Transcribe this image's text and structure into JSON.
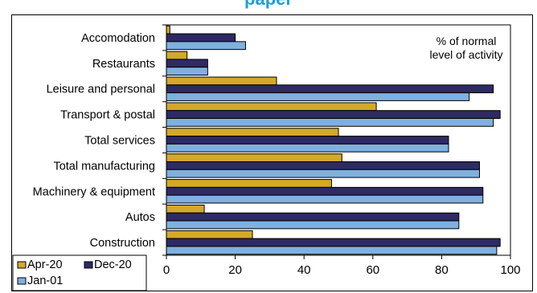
{
  "title_partial": "paper",
  "chart_data": {
    "type": "bar",
    "orientation": "horizontal",
    "categories": [
      "Accomodation",
      "Restaurants",
      "Leisure and personal",
      "Transport & postal",
      "Total services",
      "Total manufacturing",
      "Machinery & equipment",
      "Autos",
      "Construction"
    ],
    "series": [
      {
        "name": "Apr-20",
        "color": "#d4a82a",
        "values": [
          1,
          6,
          32,
          61,
          50,
          51,
          48,
          11,
          25
        ]
      },
      {
        "name": "Dec-20",
        "color": "#2e2a63",
        "values": [
          20,
          12,
          95,
          97,
          82,
          91,
          92,
          85,
          97
        ]
      },
      {
        "name": "Jan-01",
        "color": "#7fb0e0",
        "values": [
          23,
          12,
          88,
          95,
          82,
          91,
          92,
          85,
          96
        ]
      }
    ],
    "xlim": [
      0,
      100
    ],
    "xticks": [
      "0",
      "20",
      "40",
      "60",
      "80",
      "100"
    ],
    "annotation": [
      "% of normal",
      "level of activity"
    ],
    "legend": {
      "placement": "bottom-left",
      "entries": [
        "Apr-20",
        "Dec-20",
        "Jan-01"
      ]
    },
    "grid": false
  }
}
